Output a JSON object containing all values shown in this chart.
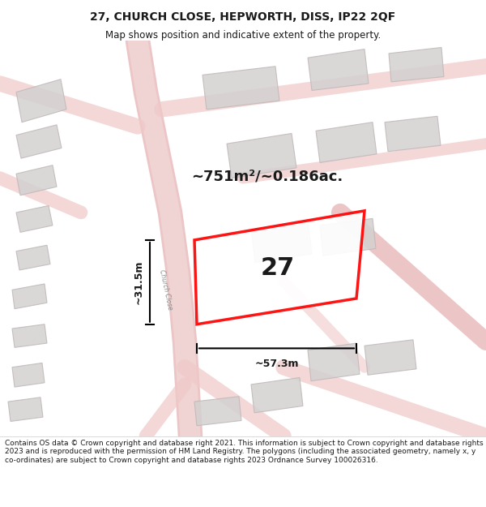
{
  "title": "27, CHURCH CLOSE, HEPWORTH, DISS, IP22 2QF",
  "subtitle": "Map shows position and indicative extent of the property.",
  "footer": "Contains OS data © Crown copyright and database right 2021. This information is subject to Crown copyright and database rights 2023 and is reproduced with the permission of HM Land Registry. The polygons (including the associated geometry, namely x, y co-ordinates) are subject to Crown copyright and database rights 2023 Ordnance Survey 100026316.",
  "area_label": "~751m²/~0.186ac.",
  "width_label": "~57.3m",
  "height_label": "~31.5m",
  "plot_number": "27",
  "bg_color": "#f5f0f0",
  "map_bg": "#ffffff",
  "road_color": "#e8c8c8",
  "building_color": "#d4d0d0",
  "building_edge": "#c0b8b8",
  "plot_color": "#ff0000",
  "dim_color": "#1a1a1a",
  "title_color": "#1a1a1a",
  "footer_color": "#1a1a1a"
}
